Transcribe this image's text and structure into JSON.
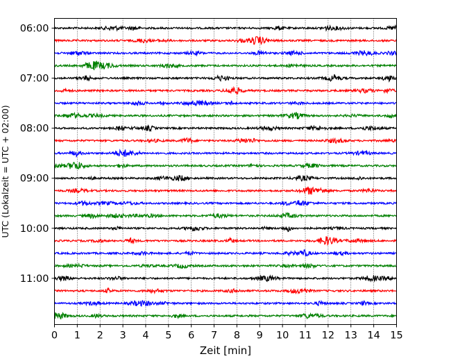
{
  "chart_data": {
    "type": "line",
    "title": "",
    "xlabel": "Zeit  [min]",
    "ylabel": "UTC (Lokalzeit = UTC + 02:00)",
    "xlim": [
      0,
      15
    ],
    "x_ticks": [
      "0",
      "1",
      "2",
      "3",
      "4",
      "5",
      "6",
      "7",
      "8",
      "9",
      "10",
      "11",
      "12",
      "13",
      "14",
      "15"
    ],
    "y_ticks": [
      "06:00",
      "07:00",
      "08:00",
      "09:00",
      "10:00",
      "11:00"
    ],
    "grid": "vertical dotted lines at every minute",
    "trace_colors": [
      "#000000",
      "#ff0000",
      "#0000ff",
      "#008000"
    ],
    "traces": [
      {
        "start": "06:00",
        "color": "#000000"
      },
      {
        "start": "06:15",
        "color": "#ff0000"
      },
      {
        "start": "06:30",
        "color": "#0000ff"
      },
      {
        "start": "06:45",
        "color": "#008000"
      },
      {
        "start": "07:00",
        "color": "#000000"
      },
      {
        "start": "07:15",
        "color": "#ff0000"
      },
      {
        "start": "07:30",
        "color": "#0000ff"
      },
      {
        "start": "07:45",
        "color": "#008000"
      },
      {
        "start": "08:00",
        "color": "#000000"
      },
      {
        "start": "08:15",
        "color": "#ff0000"
      },
      {
        "start": "08:30",
        "color": "#0000ff"
      },
      {
        "start": "08:45",
        "color": "#008000"
      },
      {
        "start": "09:00",
        "color": "#000000"
      },
      {
        "start": "09:15",
        "color": "#ff0000"
      },
      {
        "start": "09:30",
        "color": "#0000ff"
      },
      {
        "start": "09:45",
        "color": "#008000"
      },
      {
        "start": "10:00",
        "color": "#000000"
      },
      {
        "start": "10:15",
        "color": "#ff0000"
      },
      {
        "start": "10:30",
        "color": "#0000ff"
      },
      {
        "start": "10:45",
        "color": "#008000"
      },
      {
        "start": "11:00",
        "color": "#000000"
      },
      {
        "start": "11:15",
        "color": "#ff0000"
      },
      {
        "start": "11:30",
        "color": "#0000ff"
      },
      {
        "start": "11:45",
        "color": "#008000"
      }
    ]
  }
}
